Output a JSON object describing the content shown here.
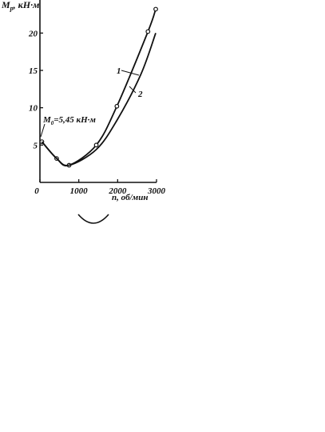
{
  "chart_data": {
    "type": "line",
    "title": "",
    "ylabel": {
      "main": "M",
      "sub": "p",
      "unit": ", кН·м"
    },
    "xlabel": {
      "main": "n",
      "unit": ", об/мин"
    },
    "xlim": [
      0,
      3000
    ],
    "ylim": [
      0,
      24
    ],
    "x_ticks": [
      0,
      1000,
      2000,
      3000
    ],
    "y_ticks": [
      5,
      10,
      15,
      20
    ],
    "grid": false,
    "series": [
      {
        "name": "1",
        "markers": true,
        "points": [
          [
            50,
            5.45
          ],
          [
            430,
            3.2
          ],
          [
            750,
            2.3
          ],
          [
            1450,
            5.0
          ],
          [
            1980,
            10.2
          ],
          [
            2780,
            20.2
          ],
          [
            2980,
            23.2
          ]
        ]
      },
      {
        "name": "2",
        "markers": false,
        "points": [
          [
            50,
            5.45
          ],
          [
            430,
            3.2
          ],
          [
            750,
            2.3
          ],
          [
            1450,
            4.4
          ],
          [
            1980,
            8.3
          ],
          [
            2600,
            14.5
          ],
          [
            2980,
            20.0
          ]
        ]
      }
    ],
    "annotation": {
      "main": "M",
      "sub": "0",
      "rest": "=5,45 кН·м",
      "x": 50,
      "y": 5.45
    }
  }
}
